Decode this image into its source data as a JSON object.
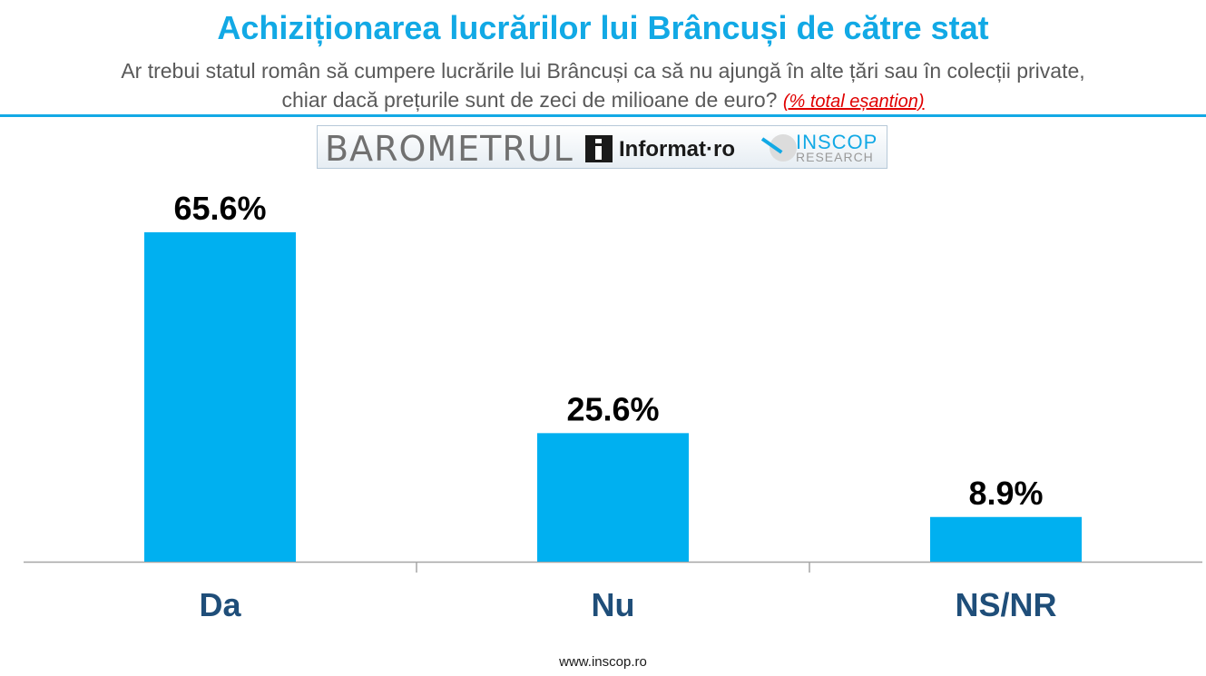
{
  "header": {
    "title": "Achiziționarea lucrărilor lui Brâncuși de către stat",
    "subtitle_line1": "Ar trebui statul român să cumpere lucrările lui Brâncuși ca să nu ajungă în alte țări sau în colecții private,",
    "subtitle_line2": "chiar dacă prețurile sunt de zeci de milioane de euro?",
    "note": "(% total eșantion)"
  },
  "banner": {
    "barometer": "BAROMETRUL",
    "informat": "Informat·ro",
    "inscop": "INSCOP",
    "research": "RESEARCH"
  },
  "colors": {
    "accent": "#12a9e5",
    "bar": "#00b0f0",
    "category_label": "#1f4e79",
    "note": "#e00000"
  },
  "chart_data": {
    "type": "bar",
    "title": "Achiziționarea lucrărilor lui Brâncuși de către stat",
    "categories": [
      "Da",
      "Nu",
      "NS/NR"
    ],
    "values": [
      65.6,
      25.6,
      8.9
    ],
    "value_labels": [
      "65.6%",
      "25.6%",
      "8.9%"
    ],
    "unit": "%",
    "ylim": [
      0,
      100
    ],
    "grid": false,
    "legend": "none",
    "xlabel": "",
    "ylabel": ""
  },
  "footer": {
    "website": "www.inscop.ro"
  }
}
